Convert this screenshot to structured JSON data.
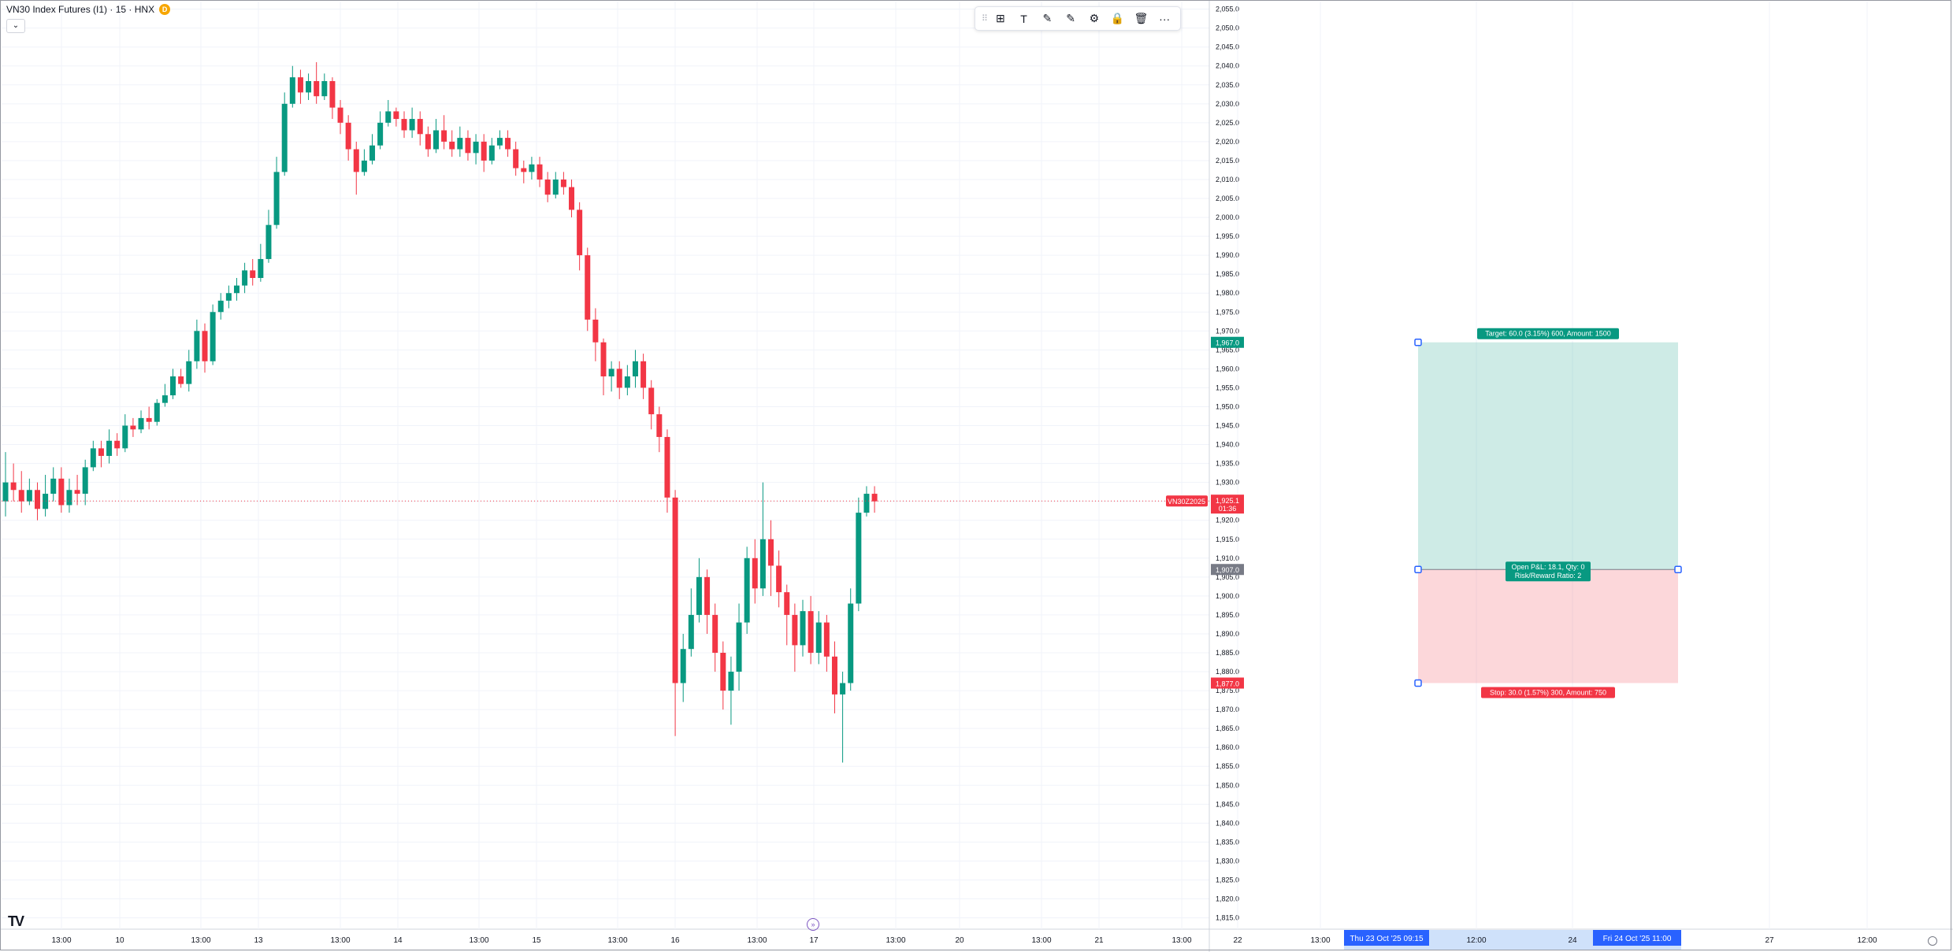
{
  "legend": {
    "title": "VN30 Index Futures (I1) · 15 · HNX",
    "badge": "D",
    "toggle": "⌄"
  },
  "toolbar": {
    "items": [
      {
        "name": "drag-handle-icon",
        "glyph": "⠿"
      },
      {
        "name": "template-icon",
        "glyph": "⊞"
      },
      {
        "name": "text-tool-icon",
        "glyph": "T"
      },
      {
        "name": "line-color-icon",
        "glyph": "✎"
      },
      {
        "name": "fill-color-icon",
        "glyph": "✎"
      },
      {
        "name": "settings-gear-icon",
        "glyph": "⚙"
      },
      {
        "name": "lock-icon",
        "glyph": "🔒"
      },
      {
        "name": "delete-icon",
        "glyph": "🗑"
      },
      {
        "name": "more-options-icon",
        "glyph": "···"
      }
    ]
  },
  "colors": {
    "up": "#089981",
    "down": "#f23645",
    "grid": "#f0f3fa",
    "axis_text": "#131722",
    "target_zone": "rgba(8,153,129,0.2)",
    "stop_zone": "rgba(242,54,69,0.2)",
    "entry_label": "#787b86",
    "time_highlight": "#cfe1fa",
    "time_badge": "#2962ff"
  },
  "chart_data": {
    "type": "candlestick",
    "symbol": "VN30Z2025",
    "ylim": [
      1812,
      2057
    ],
    "y_ticks": [
      2055,
      2050,
      2045,
      2040,
      2035,
      2030,
      2025,
      2020,
      2015,
      2010,
      2005,
      2000,
      1995,
      1990,
      1985,
      1980,
      1975,
      1970,
      1965,
      1960,
      1955,
      1950,
      1945,
      1940,
      1935,
      1930,
      1925,
      1920,
      1915,
      1910,
      1905,
      1900,
      1895,
      1890,
      1885,
      1880,
      1875,
      1870,
      1865,
      1860,
      1855,
      1850,
      1845,
      1840,
      1835,
      1830,
      1825,
      1820,
      1815
    ],
    "x_ticks": [
      "13:00",
      "10",
      "13:00",
      "13",
      "13:00",
      "14",
      "13:00",
      "15",
      "13:00",
      "16",
      "13:00",
      "17",
      "13:00",
      "20",
      "13:00",
      "21",
      "13:00",
      "22",
      "13:00",
      "12:00",
      "24",
      "27",
      "12:00"
    ],
    "candles": [
      [
        1925,
        1930,
        1938,
        1921
      ],
      [
        1930,
        1928,
        1935,
        1925
      ],
      [
        1928,
        1925,
        1933,
        1922
      ],
      [
        1925,
        1928,
        1931,
        1924
      ],
      [
        1928,
        1923,
        1930,
        1920
      ],
      [
        1923,
        1927,
        1932,
        1921
      ],
      [
        1927,
        1931,
        1934,
        1925
      ],
      [
        1931,
        1924,
        1934,
        1922
      ],
      [
        1924,
        1928,
        1931,
        1922
      ],
      [
        1928,
        1927,
        1932,
        1924
      ],
      [
        1927,
        1934,
        1936,
        1924
      ],
      [
        1934,
        1939,
        1941,
        1933
      ],
      [
        1939,
        1937,
        1941,
        1934
      ],
      [
        1937,
        1941,
        1944,
        1935
      ],
      [
        1941,
        1939,
        1943,
        1937
      ],
      [
        1939,
        1945,
        1948,
        1938
      ],
      [
        1945,
        1944,
        1947,
        1942
      ],
      [
        1944,
        1947,
        1949,
        1943
      ],
      [
        1947,
        1946,
        1950,
        1944
      ],
      [
        1946,
        1951,
        1952,
        1945
      ],
      [
        1951,
        1953,
        1956,
        1950
      ],
      [
        1953,
        1958,
        1960,
        1952
      ],
      [
        1958,
        1956,
        1960,
        1955
      ],
      [
        1956,
        1962,
        1965,
        1954
      ],
      [
        1962,
        1970,
        1973,
        1960
      ],
      [
        1970,
        1962,
        1972,
        1959
      ],
      [
        1962,
        1975,
        1977,
        1961
      ],
      [
        1975,
        1978,
        1980,
        1973
      ],
      [
        1978,
        1980,
        1982,
        1976
      ],
      [
        1980,
        1982,
        1984,
        1978
      ],
      [
        1982,
        1986,
        1988,
        1980
      ],
      [
        1986,
        1984,
        1989,
        1982
      ],
      [
        1984,
        1989,
        1993,
        1983
      ],
      [
        1989,
        1998,
        2002,
        1988
      ],
      [
        1998,
        2012,
        2016,
        1997
      ],
      [
        2012,
        2030,
        2033,
        2011
      ],
      [
        2030,
        2037,
        2040,
        2029
      ],
      [
        2037,
        2033,
        2039,
        2030
      ],
      [
        2033,
        2036,
        2038,
        2031
      ],
      [
        2036,
        2032,
        2041,
        2030
      ],
      [
        2032,
        2036,
        2038,
        2031
      ],
      [
        2036,
        2029,
        2037,
        2026
      ],
      [
        2029,
        2025,
        2031,
        2022
      ],
      [
        2025,
        2018,
        2027,
        2015
      ],
      [
        2018,
        2012,
        2020,
        2006
      ],
      [
        2012,
        2015,
        2018,
        2011
      ],
      [
        2015,
        2019,
        2022,
        2014
      ],
      [
        2019,
        2025,
        2028,
        2018
      ],
      [
        2025,
        2028,
        2031,
        2024
      ],
      [
        2028,
        2026,
        2029,
        2024
      ],
      [
        2026,
        2023,
        2028,
        2021
      ],
      [
        2023,
        2026,
        2029,
        2021
      ],
      [
        2026,
        2022,
        2028,
        2019
      ],
      [
        2022,
        2018,
        2024,
        2016
      ],
      [
        2018,
        2023,
        2026,
        2017
      ],
      [
        2023,
        2020,
        2027,
        2018
      ],
      [
        2020,
        2018,
        2023,
        2016
      ],
      [
        2018,
        2021,
        2024,
        2016
      ],
      [
        2021,
        2017,
        2023,
        2015
      ],
      [
        2017,
        2020,
        2022,
        2014
      ],
      [
        2020,
        2015,
        2022,
        2012
      ],
      [
        2015,
        2019,
        2021,
        2014
      ],
      [
        2019,
        2021,
        2023,
        2018
      ],
      [
        2021,
        2018,
        2023,
        2016
      ],
      [
        2018,
        2013,
        2020,
        2011
      ],
      [
        2013,
        2012,
        2015,
        2009
      ],
      [
        2012,
        2014,
        2016,
        2010
      ],
      [
        2014,
        2010,
        2016,
        2008
      ],
      [
        2010,
        2006,
        2012,
        2004
      ],
      [
        2006,
        2010,
        2012,
        2005
      ],
      [
        2010,
        2008,
        2012,
        2006
      ],
      [
        2008,
        2002,
        2010,
        2000
      ],
      [
        2002,
        1990,
        2004,
        1986
      ],
      [
        1990,
        1973,
        1992,
        1970
      ],
      [
        1973,
        1967,
        1976,
        1962
      ],
      [
        1967,
        1958,
        1968,
        1953
      ],
      [
        1958,
        1960,
        1962,
        1954
      ],
      [
        1960,
        1955,
        1962,
        1952
      ],
      [
        1955,
        1958,
        1961,
        1953
      ],
      [
        1958,
        1962,
        1965,
        1955
      ],
      [
        1962,
        1955,
        1964,
        1952
      ],
      [
        1955,
        1948,
        1957,
        1944
      ],
      [
        1948,
        1942,
        1950,
        1938
      ],
      [
        1942,
        1926,
        1944,
        1922
      ],
      [
        1926,
        1877,
        1928,
        1863
      ],
      [
        1877,
        1886,
        1890,
        1872
      ],
      [
        1886,
        1895,
        1902,
        1884
      ],
      [
        1895,
        1905,
        1910,
        1893
      ],
      [
        1905,
        1895,
        1907,
        1890
      ],
      [
        1895,
        1885,
        1898,
        1880
      ],
      [
        1885,
        1875,
        1888,
        1870
      ],
      [
        1875,
        1880,
        1884,
        1866
      ],
      [
        1880,
        1893,
        1898,
        1875
      ],
      [
        1893,
        1910,
        1913,
        1890
      ],
      [
        1910,
        1902,
        1915,
        1898
      ],
      [
        1902,
        1915,
        1930,
        1900
      ],
      [
        1915,
        1908,
        1920,
        1900
      ],
      [
        1908,
        1901,
        1912,
        1897
      ],
      [
        1901,
        1895,
        1903,
        1887
      ],
      [
        1895,
        1887,
        1898,
        1880
      ],
      [
        1887,
        1896,
        1899,
        1884
      ],
      [
        1896,
        1885,
        1900,
        1882
      ],
      [
        1885,
        1893,
        1896,
        1882
      ],
      [
        1893,
        1884,
        1895,
        1880
      ],
      [
        1884,
        1874,
        1888,
        1869
      ],
      [
        1874,
        1877,
        1880,
        1856
      ],
      [
        1877,
        1898,
        1902,
        1875
      ],
      [
        1898,
        1922,
        1926,
        1896
      ],
      [
        1922,
        1927,
        1929,
        1921
      ],
      [
        1927,
        1925,
        1929,
        1922
      ]
    ],
    "last_price": {
      "symbol": "VN30Z2025",
      "value": "1,925.1",
      "countdown": "01:36"
    },
    "position": {
      "type": "long",
      "target_price": "1,967.0",
      "entry_price": "1,907.0",
      "stop_price": "1,877.0",
      "target_label": "Target: 60.0 (3.15%) 600, Amount: 1500",
      "entry_label_1": "Open P&L: 18.1, Qty: 0",
      "entry_label_2": "Risk/Reward Ratio: 2",
      "stop_label": "Stop: 30.0 (1.57%) 300, Amount: 750"
    },
    "time_selection": {
      "start": "Thu 23 Oct '25   09:15",
      "end": "Fri 24 Oct '25   11:00"
    }
  }
}
